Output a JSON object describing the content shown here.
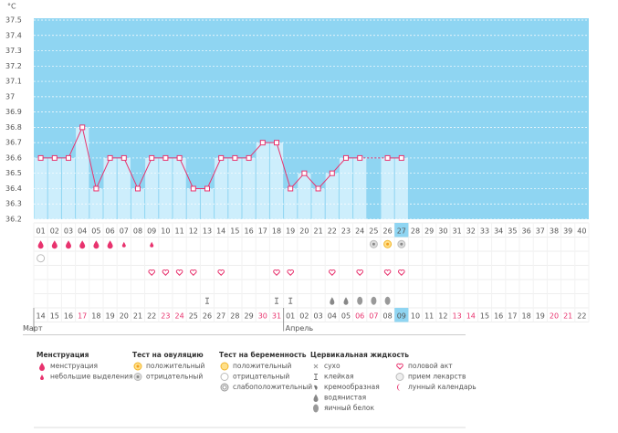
{
  "chart_data": {
    "type": "line",
    "y_label": "°C",
    "categories": [
      "01",
      "02",
      "03",
      "04",
      "05",
      "06",
      "07",
      "08",
      "09",
      "10",
      "11",
      "12",
      "13",
      "14",
      "15",
      "16",
      "17",
      "18",
      "19",
      "20",
      "21",
      "22",
      "23",
      "24",
      "25",
      "26",
      "27",
      "28",
      "29",
      "30",
      "31",
      "32",
      "33",
      "34",
      "35",
      "36",
      "37",
      "38",
      "39",
      "40"
    ],
    "values": [
      36.6,
      36.6,
      36.6,
      36.8,
      36.4,
      36.6,
      36.6,
      36.4,
      36.6,
      36.6,
      36.6,
      36.4,
      36.4,
      36.6,
      36.6,
      36.6,
      36.7,
      36.7,
      36.4,
      36.5,
      36.4,
      36.5,
      36.6,
      36.6,
      null,
      36.6,
      36.6,
      null,
      null,
      null,
      null,
      null,
      null,
      null,
      null,
      null,
      null,
      null,
      null,
      null
    ],
    "ylim": [
      36.2,
      37.5
    ],
    "yticks": [
      36.2,
      36.3,
      36.4,
      36.5,
      36.6,
      36.7,
      36.8,
      36.9,
      37,
      37.1,
      37.2,
      37.3,
      37.4,
      37.5
    ],
    "grid": true,
    "line_color": "#e8336e",
    "bar_color": "#cdeefc",
    "background_color": "#8fd5f2",
    "today_day": 27
  },
  "dates": [
    {
      "label": "14",
      "weekend": false
    },
    {
      "label": "15",
      "weekend": false
    },
    {
      "label": "16",
      "weekend": false
    },
    {
      "label": "17",
      "weekend": true
    },
    {
      "label": "18",
      "weekend": false
    },
    {
      "label": "19",
      "weekend": false
    },
    {
      "label": "20",
      "weekend": false
    },
    {
      "label": "21",
      "weekend": false
    },
    {
      "label": "22",
      "weekend": false
    },
    {
      "label": "23",
      "weekend": true
    },
    {
      "label": "24",
      "weekend": true
    },
    {
      "label": "25",
      "weekend": false
    },
    {
      "label": "26",
      "weekend": false
    },
    {
      "label": "27",
      "weekend": false
    },
    {
      "label": "28",
      "weekend": false
    },
    {
      "label": "29",
      "weekend": false
    },
    {
      "label": "30",
      "weekend": true
    },
    {
      "label": "31",
      "weekend": true
    },
    {
      "label": "01",
      "weekend": false
    },
    {
      "label": "02",
      "weekend": false
    },
    {
      "label": "03",
      "weekend": false
    },
    {
      "label": "04",
      "weekend": false
    },
    {
      "label": "05",
      "weekend": false
    },
    {
      "label": "06",
      "weekend": true
    },
    {
      "label": "07",
      "weekend": true
    },
    {
      "label": "08",
      "weekend": false
    },
    {
      "label": "09",
      "weekend": false
    },
    {
      "label": "10",
      "weekend": false
    },
    {
      "label": "11",
      "weekend": false
    },
    {
      "label": "12",
      "weekend": false
    },
    {
      "label": "13",
      "weekend": true
    },
    {
      "label": "14",
      "weekend": true
    },
    {
      "label": "15",
      "weekend": false
    },
    {
      "label": "16",
      "weekend": false
    },
    {
      "label": "17",
      "weekend": false
    },
    {
      "label": "18",
      "weekend": false
    },
    {
      "label": "19",
      "weekend": false
    },
    {
      "label": "20",
      "weekend": true
    },
    {
      "label": "21",
      "weekend": true
    },
    {
      "label": "22",
      "weekend": false
    }
  ],
  "months": [
    {
      "label": "Март",
      "start_day": 1
    },
    {
      "label": "Апрель",
      "start_day": 19
    }
  ],
  "symbols": [
    {
      "row": 0,
      "kind": "menstruation",
      "days": [
        1,
        2,
        3,
        4,
        5,
        6
      ]
    },
    {
      "row": 0,
      "kind": "spotting",
      "days": [
        7,
        9
      ]
    },
    {
      "row": 0,
      "kind": "ovulation-negative",
      "days": [
        25,
        27
      ]
    },
    {
      "row": 0,
      "kind": "ovulation-positive",
      "days": [
        26
      ]
    },
    {
      "row": 1,
      "kind": "pregnancy-negative",
      "days": [
        1
      ]
    },
    {
      "row": 2,
      "kind": "intercourse",
      "days": [
        9,
        10,
        11,
        12,
        14,
        18,
        19,
        22,
        24,
        26,
        27
      ]
    },
    {
      "row": 4,
      "kind": "sticky",
      "days": [
        13,
        18,
        19
      ]
    },
    {
      "row": 4,
      "kind": "watery",
      "days": [
        22,
        23
      ]
    },
    {
      "row": 4,
      "kind": "egg-white",
      "days": [
        24,
        25,
        26
      ]
    }
  ],
  "legend": [
    {
      "title": "Менструация",
      "items": [
        {
          "kind": "menstruation",
          "label": "менструация"
        },
        {
          "kind": "spotting",
          "label": "небольшие выделения"
        }
      ]
    },
    {
      "title": "Тест на овуляцию",
      "items": [
        {
          "kind": "ovulation-positive",
          "label": "положительный"
        },
        {
          "kind": "ovulation-negative",
          "label": "отрицательный"
        }
      ]
    },
    {
      "title": "Тест на беременность",
      "items": [
        {
          "kind": "pregnancy-positive",
          "label": "положительный"
        },
        {
          "kind": "pregnancy-negative",
          "label": "отрицательный"
        },
        {
          "kind": "pregnancy-weak",
          "label": "слабоположительный"
        }
      ]
    },
    {
      "title": "Цервикальная жидкость",
      "items": [
        {
          "kind": "dry",
          "label": "сухо"
        },
        {
          "kind": "sticky",
          "label": "клейкая"
        },
        {
          "kind": "creamy",
          "label": "кремообразная"
        },
        {
          "kind": "watery",
          "label": "водянистая"
        },
        {
          "kind": "egg-white",
          "label": "яичный белок"
        }
      ]
    },
    {
      "items": [
        {
          "kind": "intercourse",
          "label": "половой акт"
        },
        {
          "kind": "pill",
          "label": "прием лекарств"
        },
        {
          "kind": "moon",
          "label": "лунный календарь"
        }
      ]
    }
  ]
}
